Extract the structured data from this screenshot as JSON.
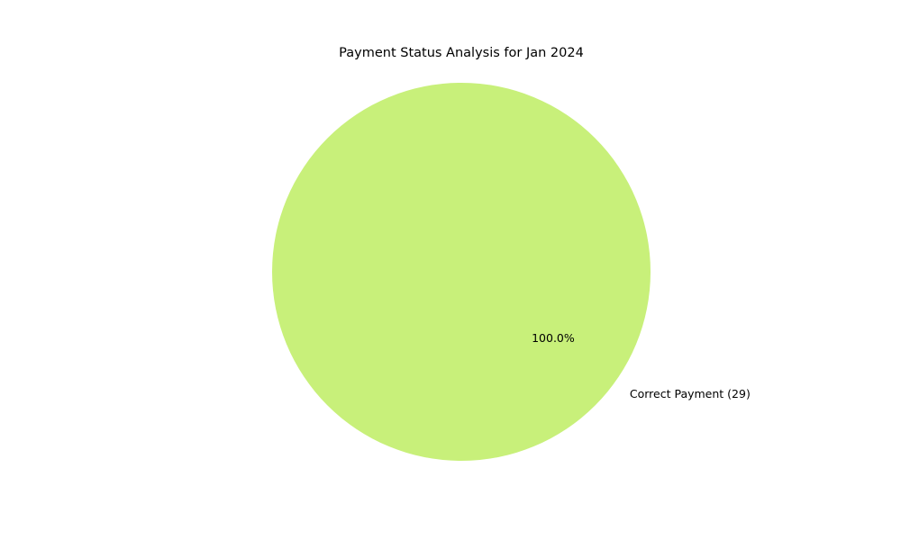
{
  "chart_data": {
    "type": "pie",
    "title": "Payment Status Analysis for Jan 2024",
    "slices": [
      {
        "label": "Correct Payment (29)",
        "value": 29,
        "percent_label": "100.0%",
        "color": "#c8f07a"
      }
    ],
    "legend": "none"
  }
}
